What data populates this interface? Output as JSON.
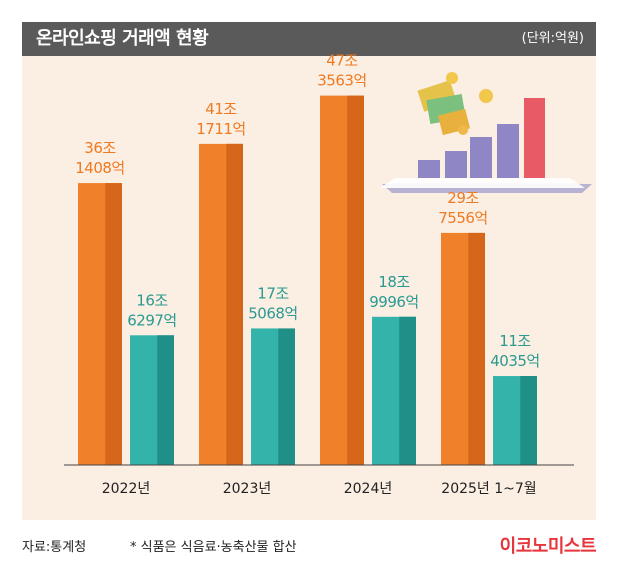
{
  "header": {
    "title": "온라인쇼핑 거래액 현황",
    "unit": "(단위:억원)"
  },
  "footer": {
    "source": "자료:통계청",
    "note": "* 식품은 식음료·농축산물 합산",
    "logo": "이코노미스트"
  },
  "colors": {
    "total": "#f0802a",
    "food": "#33b3aa",
    "total_label": "#ef7a22",
    "food_label": "#2a9a93",
    "panel": "#fbeee2",
    "titlebar": "#5a5a5a",
    "logo": "#e8343c"
  },
  "chart_data": {
    "type": "bar",
    "title": "온라인쇼핑 거래액 현황",
    "unit": "억원",
    "categories": [
      "2022년",
      "2023년",
      "2024년",
      "2025년 1~7월"
    ],
    "series": [
      {
        "values": [
          361408,
          411711,
          473563,
          297556
        ],
        "labels": [
          [
            "36조",
            "1408억"
          ],
          [
            "41조",
            "1711억"
          ],
          [
            "47조",
            "3563억"
          ],
          [
            "29조",
            "7556억"
          ]
        ]
      },
      {
        "values": [
          166297,
          175068,
          189996,
          114035
        ],
        "labels": [
          [
            "16조",
            "6297억"
          ],
          [
            "17조",
            "5068억"
          ],
          [
            "18조",
            "9996억"
          ],
          [
            "11조",
            "4035억"
          ]
        ]
      }
    ],
    "ylim": [
      0,
      500000
    ],
    "grid": false,
    "legend": "none"
  }
}
